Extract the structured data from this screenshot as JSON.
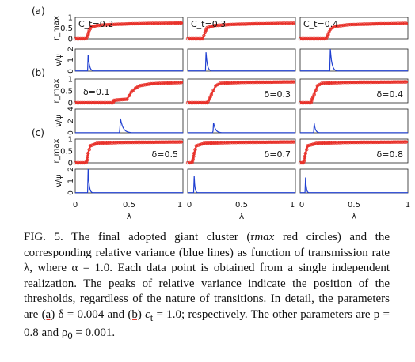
{
  "figure": {
    "row_labels": [
      "(a)",
      "(b)",
      "(c)"
    ],
    "ylabel_top": "r_max",
    "ylabel_bottom": "ν/ψ",
    "xlabel": "λ",
    "x_ticks": [
      "0",
      "0.5",
      "1"
    ],
    "top_ticks": [
      "1",
      "0.5",
      "0"
    ],
    "bottom_ticks_default": [
      "2",
      "1",
      "0"
    ],
    "bottom_ticks_b": [
      "4",
      "2",
      "0"
    ],
    "colors": {
      "rmax": "#e8322b",
      "variance": "#1f3fd1",
      "axis": "#222222"
    }
  },
  "chart_data": [
    {
      "type": "line",
      "row": "(a)",
      "col": 0,
      "label": "C_t=0.2",
      "xlim": [
        0,
        1
      ],
      "rmax_ylim": [
        0,
        1
      ],
      "var_ylim": [
        0,
        2
      ],
      "rmax_series": [
        [
          0,
          0
        ],
        [
          0.1,
          0
        ],
        [
          0.12,
          0.2
        ],
        [
          0.13,
          0.4
        ],
        [
          0.15,
          0.55
        ],
        [
          0.2,
          0.62
        ],
        [
          0.3,
          0.66
        ],
        [
          0.5,
          0.7
        ],
        [
          0.7,
          0.72
        ],
        [
          1.0,
          0.74
        ]
      ],
      "variance_peak": {
        "x": 0.12,
        "height": 1.5,
        "width": 0.02
      }
    },
    {
      "type": "line",
      "row": "(a)",
      "col": 1,
      "label": "C_t=0.3",
      "xlim": [
        0,
        1
      ],
      "rmax_ylim": [
        0,
        1
      ],
      "var_ylim": [
        0,
        2
      ],
      "rmax_series": [
        [
          0,
          0
        ],
        [
          0.14,
          0
        ],
        [
          0.16,
          0.3
        ],
        [
          0.18,
          0.52
        ],
        [
          0.25,
          0.62
        ],
        [
          0.4,
          0.67
        ],
        [
          0.6,
          0.7
        ],
        [
          1.0,
          0.73
        ]
      ],
      "variance_peak": {
        "x": 0.17,
        "height": 1.7,
        "width": 0.02
      }
    },
    {
      "type": "line",
      "row": "(a)",
      "col": 2,
      "label": "C_t=0.4",
      "xlim": [
        0,
        1
      ],
      "rmax_ylim": [
        0,
        1
      ],
      "var_ylim": [
        0,
        2
      ],
      "rmax_series": [
        [
          0,
          0
        ],
        [
          0.24,
          0
        ],
        [
          0.26,
          0.2
        ],
        [
          0.28,
          0.45
        ],
        [
          0.32,
          0.58
        ],
        [
          0.45,
          0.66
        ],
        [
          0.7,
          0.7
        ],
        [
          1.0,
          0.72
        ]
      ],
      "variance_peak": {
        "x": 0.28,
        "height": 2.0,
        "width": 0.025
      }
    },
    {
      "type": "line",
      "row": "(b)",
      "col": 0,
      "label": "δ=0.1",
      "xlim": [
        0,
        1
      ],
      "rmax_ylim": [
        0,
        1
      ],
      "var_ylim": [
        0,
        4
      ],
      "rmax_series": [
        [
          0,
          0
        ],
        [
          0.35,
          0
        ],
        [
          0.36,
          0.1
        ],
        [
          0.42,
          0.13
        ],
        [
          0.48,
          0.15
        ],
        [
          0.52,
          0.45
        ],
        [
          0.56,
          0.62
        ],
        [
          0.6,
          0.72
        ],
        [
          0.7,
          0.8
        ],
        [
          1.0,
          0.86
        ]
      ],
      "variance_peak": {
        "x": 0.42,
        "height": 2.4,
        "width": 0.04
      }
    },
    {
      "type": "line",
      "row": "(b)",
      "col": 1,
      "label": "δ=0.3",
      "xlim": [
        0,
        1
      ],
      "rmax_ylim": [
        0,
        1
      ],
      "var_ylim": [
        0,
        4
      ],
      "rmax_series": [
        [
          0,
          0
        ],
        [
          0.18,
          0
        ],
        [
          0.2,
          0.15
        ],
        [
          0.22,
          0.35
        ],
        [
          0.26,
          0.72
        ],
        [
          0.3,
          0.82
        ],
        [
          0.5,
          0.86
        ],
        [
          1.0,
          0.88
        ]
      ],
      "variance_peak": {
        "x": 0.24,
        "height": 1.7,
        "width": 0.03
      }
    },
    {
      "type": "line",
      "row": "(b)",
      "col": 2,
      "label": "δ=0.4",
      "xlim": [
        0,
        1
      ],
      "rmax_ylim": [
        0,
        1
      ],
      "var_ylim": [
        0,
        4
      ],
      "rmax_series": [
        [
          0,
          0
        ],
        [
          0.1,
          0
        ],
        [
          0.11,
          0.15
        ],
        [
          0.13,
          0.35
        ],
        [
          0.16,
          0.72
        ],
        [
          0.2,
          0.82
        ],
        [
          0.4,
          0.86
        ],
        [
          1.0,
          0.88
        ]
      ],
      "variance_peak": {
        "x": 0.13,
        "height": 1.6,
        "width": 0.02
      }
    },
    {
      "type": "line",
      "row": "(c)",
      "col": 0,
      "label": "δ=0.5",
      "xlim": [
        0,
        1
      ],
      "rmax_ylim": [
        0,
        1
      ],
      "var_ylim": [
        0,
        2
      ],
      "rmax_series": [
        [
          0,
          0
        ],
        [
          0.1,
          0
        ],
        [
          0.11,
          0.12
        ],
        [
          0.12,
          0.4
        ],
        [
          0.14,
          0.72
        ],
        [
          0.2,
          0.82
        ],
        [
          0.4,
          0.86
        ],
        [
          1.0,
          0.88
        ]
      ],
      "variance_peak": {
        "x": 0.12,
        "height": 2.0,
        "width": 0.015
      }
    },
    {
      "type": "line",
      "row": "(c)",
      "col": 1,
      "label": "δ=0.7",
      "xlim": [
        0,
        1
      ],
      "rmax_ylim": [
        0,
        1
      ],
      "var_ylim": [
        0,
        2
      ],
      "rmax_series": [
        [
          0,
          0
        ],
        [
          0.04,
          0
        ],
        [
          0.05,
          0.15
        ],
        [
          0.06,
          0.4
        ],
        [
          0.08,
          0.72
        ],
        [
          0.15,
          0.82
        ],
        [
          0.4,
          0.86
        ],
        [
          1.0,
          0.88
        ]
      ],
      "variance_peak": {
        "x": 0.06,
        "height": 1.4,
        "width": 0.012
      }
    },
    {
      "type": "line",
      "row": "(c)",
      "col": 2,
      "label": "δ=0.8",
      "xlim": [
        0,
        1
      ],
      "rmax_ylim": [
        0,
        1
      ],
      "var_ylim": [
        0,
        2
      ],
      "rmax_series": [
        [
          0,
          0
        ],
        [
          0.03,
          0
        ],
        [
          0.04,
          0.15
        ],
        [
          0.05,
          0.4
        ],
        [
          0.07,
          0.72
        ],
        [
          0.15,
          0.82
        ],
        [
          0.4,
          0.86
        ],
        [
          1.0,
          0.88
        ]
      ],
      "variance_peak": {
        "x": 0.05,
        "height": 1.3,
        "width": 0.012
      }
    }
  ],
  "caption": {
    "lines": [
      "FIG. 5. The final adopted giant cluster (r",
      "max",
      " red circles) and the corresponding relative variance (blue lines) as function of transmission rate λ, where α = 1.0. Each data point is obtained from a single independent realization. The peaks of relative variance indicate the position of the thresholds, regardless of the nature of transitions. In detail, the parameters are ",
      "(a)",
      " δ = 0.004 and ",
      "(b)",
      " c",
      "t",
      " = 1.0; respectively. The other parameters are p = 0.8 and ρ",
      "0",
      " = 0.001."
    ]
  }
}
